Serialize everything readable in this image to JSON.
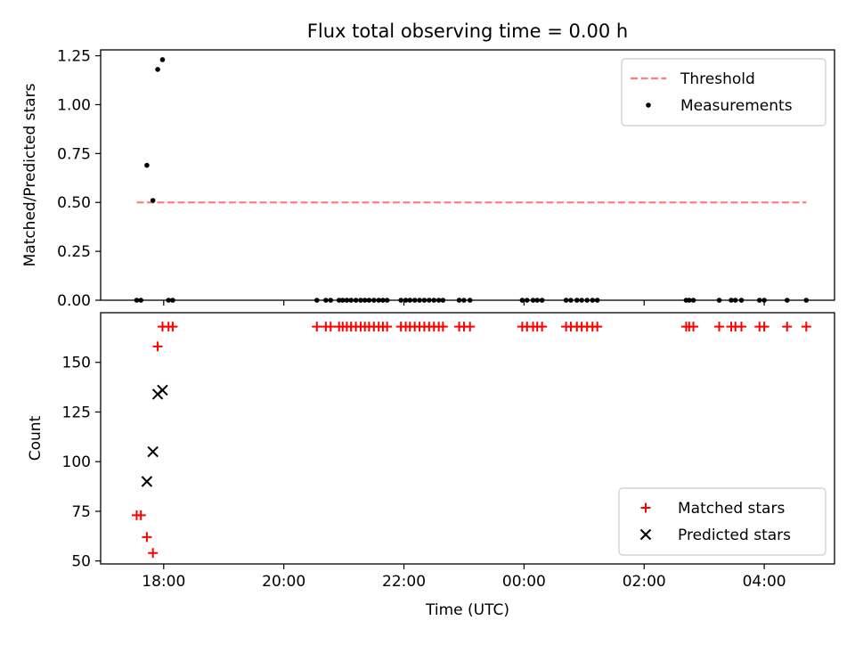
{
  "figure_title": "Flux total observing time = 0.00 h",
  "chart_data": [
    {
      "type": "scatter",
      "panel": "top",
      "title": "Flux total observing time = 0.00 h",
      "xlabel": "",
      "ylabel": "Matched/Predicted stars",
      "x_ticks": [
        "18:00",
        "20:00",
        "22:00",
        "00:00",
        "02:00",
        "04:00"
      ],
      "x_tick_hours": [
        18,
        20,
        22,
        24,
        26,
        28
      ],
      "xlim": [
        16.95,
        29.17
      ],
      "ylim": [
        0,
        1.28
      ],
      "y_ticks": [
        0.0,
        0.25,
        0.5,
        0.75,
        1.0,
        1.25
      ],
      "y_tick_labels": [
        "0.00",
        "0.25",
        "0.50",
        "0.75",
        "1.00",
        "1.25"
      ],
      "legend_position": "top-right",
      "threshold": {
        "name": "Threshold",
        "value": 0.5,
        "x_range": [
          17.55,
          28.7
        ],
        "color": "#ff7f7f"
      },
      "series": [
        {
          "name": "Measurements",
          "color": "#000000",
          "marker": "dot",
          "points": [
            [
              17.55,
              0
            ],
            [
              17.62,
              0
            ],
            [
              17.72,
              0.69
            ],
            [
              17.82,
              0.51
            ],
            [
              17.9,
              1.18
            ],
            [
              17.98,
              1.23
            ],
            [
              18.08,
              0
            ],
            [
              18.15,
              0
            ],
            [
              20.55,
              0
            ],
            [
              20.7,
              0
            ],
            [
              20.78,
              0
            ],
            [
              20.92,
              0
            ],
            [
              20.98,
              0
            ],
            [
              21.05,
              0
            ],
            [
              21.12,
              0
            ],
            [
              21.2,
              0
            ],
            [
              21.28,
              0
            ],
            [
              21.35,
              0
            ],
            [
              21.42,
              0
            ],
            [
              21.5,
              0
            ],
            [
              21.58,
              0
            ],
            [
              21.65,
              0
            ],
            [
              21.72,
              0
            ],
            [
              21.95,
              0
            ],
            [
              22.03,
              0
            ],
            [
              22.1,
              0
            ],
            [
              22.18,
              0
            ],
            [
              22.26,
              0
            ],
            [
              22.34,
              0
            ],
            [
              22.42,
              0
            ],
            [
              22.5,
              0
            ],
            [
              22.58,
              0
            ],
            [
              22.65,
              0
            ],
            [
              22.92,
              0
            ],
            [
              23.0,
              0
            ],
            [
              23.1,
              0
            ],
            [
              23.97,
              0
            ],
            [
              24.05,
              0
            ],
            [
              24.15,
              0
            ],
            [
              24.22,
              0
            ],
            [
              24.3,
              0
            ],
            [
              24.7,
              0
            ],
            [
              24.78,
              0
            ],
            [
              24.88,
              0
            ],
            [
              24.96,
              0
            ],
            [
              25.05,
              0
            ],
            [
              25.14,
              0
            ],
            [
              25.22,
              0
            ],
            [
              26.7,
              0
            ],
            [
              26.75,
              0
            ],
            [
              26.82,
              0
            ],
            [
              27.25,
              0
            ],
            [
              27.45,
              0
            ],
            [
              27.52,
              0
            ],
            [
              27.62,
              0
            ],
            [
              27.92,
              0
            ],
            [
              28.0,
              0
            ],
            [
              28.38,
              0
            ],
            [
              28.7,
              0
            ]
          ]
        }
      ]
    },
    {
      "type": "scatter",
      "panel": "bottom",
      "xlabel": "Time (UTC)",
      "ylabel": "Count",
      "x_ticks": [
        "18:00",
        "20:00",
        "22:00",
        "00:00",
        "02:00",
        "04:00"
      ],
      "x_tick_hours": [
        18,
        20,
        22,
        24,
        26,
        28
      ],
      "xlim": [
        16.95,
        29.17
      ],
      "ylim": [
        48.5,
        175
      ],
      "y_ticks": [
        50,
        75,
        100,
        125,
        150
      ],
      "y_tick_labels": [
        "50",
        "75",
        "100",
        "125",
        "150"
      ],
      "legend_position": "bottom-right",
      "series": [
        {
          "name": "Matched stars",
          "color": "#ff0000",
          "marker": "plus",
          "points": [
            [
              17.55,
              73
            ],
            [
              17.62,
              73
            ],
            [
              17.72,
              62
            ],
            [
              17.82,
              54
            ],
            [
              17.9,
              158
            ],
            [
              17.98,
              168
            ],
            [
              18.08,
              168
            ],
            [
              18.15,
              168
            ],
            [
              20.55,
              168
            ],
            [
              20.7,
              168
            ],
            [
              20.78,
              168
            ],
            [
              20.92,
              168
            ],
            [
              20.98,
              168
            ],
            [
              21.05,
              168
            ],
            [
              21.12,
              168
            ],
            [
              21.2,
              168
            ],
            [
              21.28,
              168
            ],
            [
              21.35,
              168
            ],
            [
              21.42,
              168
            ],
            [
              21.5,
              168
            ],
            [
              21.58,
              168
            ],
            [
              21.65,
              168
            ],
            [
              21.72,
              168
            ],
            [
              21.95,
              168
            ],
            [
              22.03,
              168
            ],
            [
              22.1,
              168
            ],
            [
              22.18,
              168
            ],
            [
              22.26,
              168
            ],
            [
              22.34,
              168
            ],
            [
              22.42,
              168
            ],
            [
              22.5,
              168
            ],
            [
              22.58,
              168
            ],
            [
              22.65,
              168
            ],
            [
              22.92,
              168
            ],
            [
              23.0,
              168
            ],
            [
              23.1,
              168
            ],
            [
              23.97,
              168
            ],
            [
              24.05,
              168
            ],
            [
              24.15,
              168
            ],
            [
              24.22,
              168
            ],
            [
              24.3,
              168
            ],
            [
              24.7,
              168
            ],
            [
              24.78,
              168
            ],
            [
              24.88,
              168
            ],
            [
              24.96,
              168
            ],
            [
              25.05,
              168
            ],
            [
              25.14,
              168
            ],
            [
              25.22,
              168
            ],
            [
              26.7,
              168
            ],
            [
              26.75,
              168
            ],
            [
              26.82,
              168
            ],
            [
              27.25,
              168
            ],
            [
              27.45,
              168
            ],
            [
              27.52,
              168
            ],
            [
              27.62,
              168
            ],
            [
              27.92,
              168
            ],
            [
              28.0,
              168
            ],
            [
              28.38,
              168
            ],
            [
              28.7,
              168
            ]
          ]
        },
        {
          "name": "Predicted stars",
          "color": "#000000",
          "marker": "x",
          "points": [
            [
              17.72,
              90
            ],
            [
              17.82,
              105
            ],
            [
              17.9,
              134
            ],
            [
              17.98,
              136
            ]
          ]
        }
      ]
    }
  ]
}
